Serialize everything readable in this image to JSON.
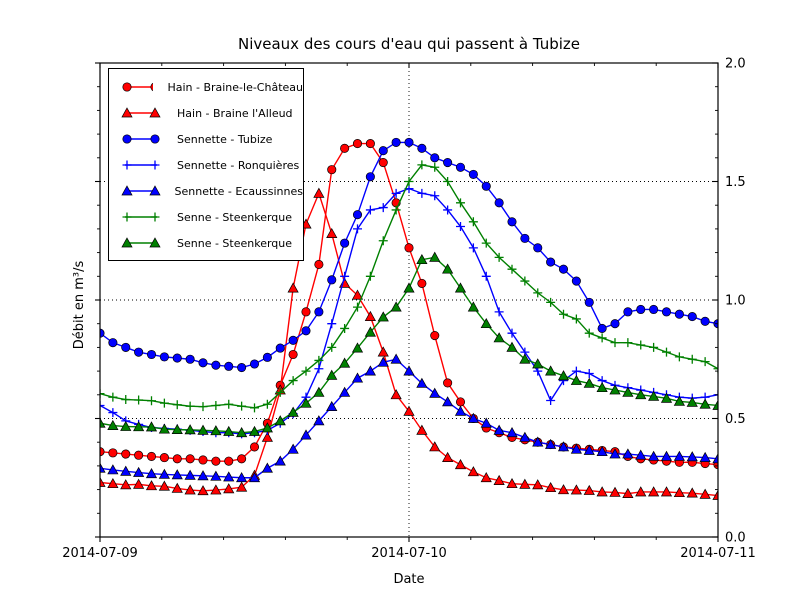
{
  "colors": {
    "red": "#ff0000",
    "blue": "#0000ff",
    "green": "#008000",
    "axis": "#000000",
    "background": "#ffffff",
    "marker_edge": "#000000"
  },
  "chart_data": {
    "type": "line",
    "title": "Niveaux des cours d'eau qui passent à Tubize",
    "xlabel": "Date",
    "ylabel": "Débit en m³/s",
    "grid": {
      "style": "dotted",
      "y_values": [
        0.5,
        1.0,
        1.5
      ],
      "x_hours": [
        24
      ]
    },
    "x_axis": {
      "range_hours": [
        0,
        48
      ],
      "tick_hours": [
        0,
        24,
        48
      ],
      "tick_labels": [
        "2014-07-09",
        "2014-07-10",
        "2014-07-11"
      ],
      "minor_tick_hours": [
        4.8,
        9.6,
        14.4,
        19.2,
        28.8,
        33.6,
        38.4,
        43.2
      ]
    },
    "y_axis": {
      "range": [
        0,
        2
      ],
      "ticks": [
        0,
        0.5,
        1.0,
        1.5,
        2.0
      ],
      "tick_labels": [
        "0.0",
        "0.5",
        "1.0",
        "1.5",
        "2.0"
      ],
      "minor_step": 0.1,
      "labels_side": "right"
    },
    "legend_position": "upper-left",
    "sample_interval_hours": 1,
    "series": [
      {
        "name": "Hain - Braine-le-Château",
        "color": "#ff0000",
        "marker": "circle",
        "values": [
          0.36,
          0.355,
          0.35,
          0.345,
          0.34,
          0.335,
          0.33,
          0.33,
          0.325,
          0.32,
          0.32,
          0.33,
          0.38,
          0.48,
          0.64,
          0.77,
          0.95,
          1.15,
          1.55,
          1.64,
          1.66,
          1.66,
          1.58,
          1.41,
          1.22,
          1.07,
          0.85,
          0.65,
          0.57,
          0.5,
          0.46,
          0.44,
          0.42,
          0.41,
          0.4,
          0.39,
          0.38,
          0.375,
          0.37,
          0.365,
          0.36,
          0.34,
          0.33,
          0.325,
          0.32,
          0.315,
          0.315,
          0.31,
          0.305
        ]
      },
      {
        "name": "Hain - Braine l'Alleud",
        "color": "#ff0000",
        "marker": "triangle",
        "values": [
          0.23,
          0.225,
          0.22,
          0.222,
          0.216,
          0.214,
          0.205,
          0.198,
          0.195,
          0.198,
          0.203,
          0.21,
          0.26,
          0.42,
          0.62,
          1.05,
          1.32,
          1.45,
          1.28,
          1.07,
          1.02,
          0.93,
          0.78,
          0.6,
          0.53,
          0.45,
          0.38,
          0.335,
          0.305,
          0.275,
          0.25,
          0.238,
          0.225,
          0.222,
          0.22,
          0.208,
          0.199,
          0.198,
          0.196,
          0.19,
          0.188,
          0.183,
          0.19,
          0.19,
          0.19,
          0.187,
          0.185,
          0.18,
          0.175
        ]
      },
      {
        "name": "Sennette - Tubize",
        "color": "#0000ff",
        "marker": "circle",
        "values": [
          0.86,
          0.82,
          0.8,
          0.78,
          0.77,
          0.76,
          0.755,
          0.75,
          0.735,
          0.725,
          0.72,
          0.715,
          0.73,
          0.758,
          0.797,
          0.83,
          0.87,
          0.95,
          1.085,
          1.24,
          1.36,
          1.52,
          1.63,
          1.665,
          1.665,
          1.64,
          1.6,
          1.58,
          1.56,
          1.53,
          1.48,
          1.41,
          1.33,
          1.26,
          1.22,
          1.16,
          1.13,
          1.08,
          0.99,
          0.88,
          0.9,
          0.95,
          0.96,
          0.96,
          0.95,
          0.94,
          0.93,
          0.91,
          0.9
        ]
      },
      {
        "name": "Sennette - Ronquières",
        "color": "#0000ff",
        "marker": "plus",
        "values": [
          0.555,
          0.525,
          0.49,
          0.475,
          0.462,
          0.458,
          0.455,
          0.45,
          0.445,
          0.44,
          0.44,
          0.435,
          0.44,
          0.45,
          0.48,
          0.52,
          0.59,
          0.71,
          0.9,
          1.1,
          1.3,
          1.38,
          1.39,
          1.45,
          1.47,
          1.45,
          1.44,
          1.38,
          1.31,
          1.22,
          1.1,
          0.95,
          0.86,
          0.78,
          0.7,
          0.576,
          0.66,
          0.7,
          0.69,
          0.66,
          0.64,
          0.63,
          0.62,
          0.61,
          0.6,
          0.59,
          0.586,
          0.59,
          0.6
        ]
      },
      {
        "name": "Sennette - Ecaussinnes",
        "color": "#0000ff",
        "marker": "triangle",
        "values": [
          0.29,
          0.283,
          0.277,
          0.272,
          0.267,
          0.264,
          0.262,
          0.26,
          0.258,
          0.256,
          0.253,
          0.25,
          0.25,
          0.29,
          0.32,
          0.37,
          0.43,
          0.49,
          0.55,
          0.61,
          0.67,
          0.7,
          0.737,
          0.75,
          0.7,
          0.648,
          0.606,
          0.57,
          0.53,
          0.5,
          0.48,
          0.45,
          0.44,
          0.42,
          0.4,
          0.39,
          0.38,
          0.37,
          0.365,
          0.36,
          0.35,
          0.35,
          0.345,
          0.34,
          0.34,
          0.34,
          0.338,
          0.335,
          0.33
        ]
      },
      {
        "name": "Senne - Steenkerque",
        "color": "#008000",
        "marker": "plus",
        "values": [
          0.605,
          0.59,
          0.58,
          0.578,
          0.575,
          0.565,
          0.558,
          0.552,
          0.55,
          0.555,
          0.56,
          0.552,
          0.545,
          0.56,
          0.61,
          0.66,
          0.7,
          0.745,
          0.8,
          0.88,
          0.97,
          1.1,
          1.25,
          1.38,
          1.5,
          1.57,
          1.56,
          1.5,
          1.41,
          1.33,
          1.24,
          1.18,
          1.13,
          1.08,
          1.03,
          0.99,
          0.94,
          0.92,
          0.86,
          0.84,
          0.82,
          0.82,
          0.81,
          0.8,
          0.78,
          0.76,
          0.75,
          0.74,
          0.71
        ]
      },
      {
        "name": "Senne - Steenkerque",
        "color": "#008000",
        "marker": "triangle",
        "values": [
          0.48,
          0.47,
          0.466,
          0.465,
          0.464,
          0.455,
          0.453,
          0.452,
          0.45,
          0.448,
          0.445,
          0.44,
          0.445,
          0.46,
          0.49,
          0.526,
          0.564,
          0.61,
          0.682,
          0.733,
          0.797,
          0.864,
          0.928,
          0.97,
          1.05,
          1.17,
          1.18,
          1.13,
          1.05,
          0.97,
          0.9,
          0.84,
          0.8,
          0.75,
          0.73,
          0.7,
          0.68,
          0.66,
          0.648,
          0.63,
          0.62,
          0.61,
          0.6,
          0.593,
          0.585,
          0.572,
          0.568,
          0.56,
          0.555
        ]
      }
    ]
  }
}
